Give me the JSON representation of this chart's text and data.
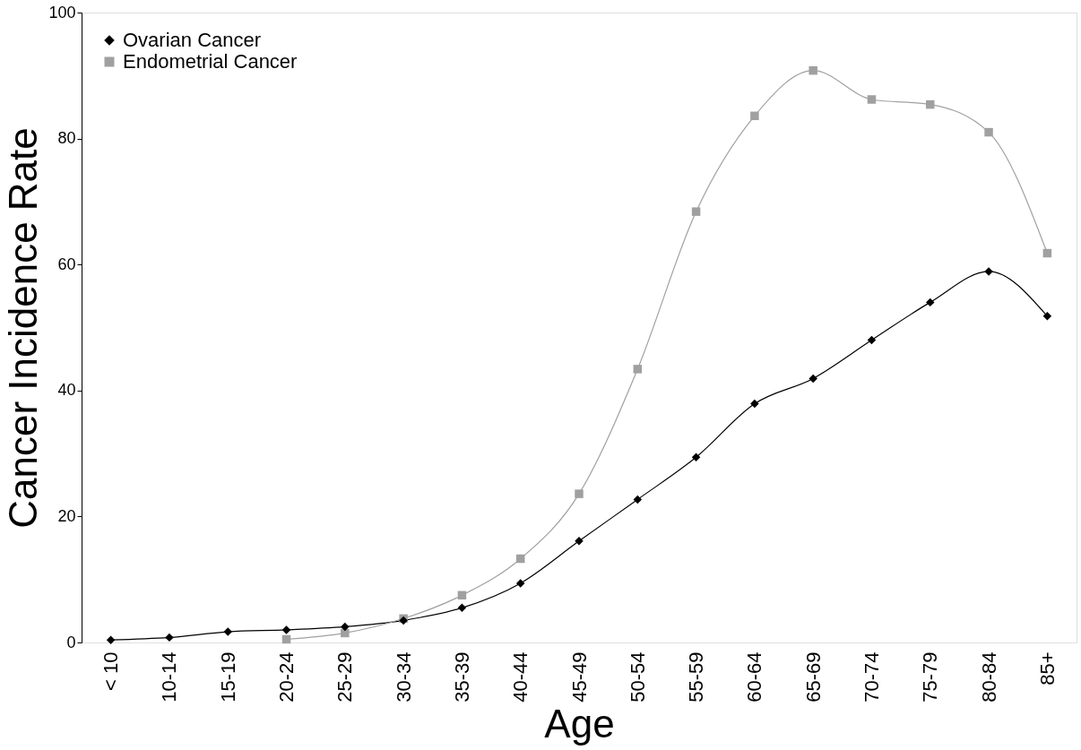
{
  "chart_data": {
    "type": "line",
    "xlabel": "Age",
    "ylabel": "Cancer Incidence Rate",
    "categories": [
      "< 10",
      "10-14",
      "15-19",
      "20-24",
      "25-29",
      "30-34",
      "35-39",
      "40-44",
      "45-49",
      "50-54",
      "55-59",
      "60-64",
      "65-69",
      "70-74",
      "75-79",
      "80-84",
      "85+"
    ],
    "series": [
      {
        "name": "Ovarian Cancer",
        "color": "#000000",
        "marker": "diamond",
        "values": [
          0.4,
          0.8,
          1.7,
          2.0,
          2.5,
          3.5,
          5.5,
          9.4,
          16.1,
          22.7,
          29.4,
          37.9,
          41.9,
          48.0,
          54.0,
          58.9,
          51.8
        ]
      },
      {
        "name": "Endometrial Cancer",
        "color": "#a0a0a0",
        "marker": "square",
        "values": [
          null,
          null,
          null,
          0.5,
          1.5,
          3.8,
          7.5,
          13.3,
          23.6,
          43.4,
          68.4,
          83.6,
          90.8,
          86.2,
          85.4,
          81.0,
          61.8
        ]
      }
    ],
    "ylim": [
      0,
      100
    ],
    "yticks": [
      0,
      20,
      40,
      60,
      80,
      100
    ],
    "grid": false,
    "legend": "top left",
    "line_style": "solid"
  }
}
